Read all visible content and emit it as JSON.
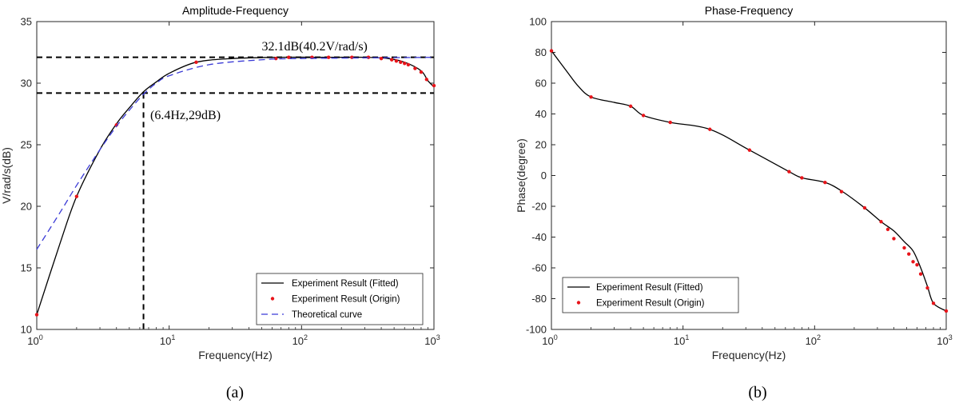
{
  "chart_data": [
    {
      "type": "line",
      "title": "Amplitude-Frequency",
      "xlabel": "Frequency(Hz)",
      "ylabel": "V/rad/s(dB)",
      "xscale": "log",
      "xlim": [
        1,
        1000
      ],
      "ylim": [
        10,
        35
      ],
      "xticks": [
        {
          "base": "10",
          "exp": "0"
        },
        {
          "base": "10",
          "exp": "1"
        },
        {
          "base": "10",
          "exp": "2"
        },
        {
          "base": "10",
          "exp": "3"
        }
      ],
      "yticks": [
        "10",
        "15",
        "20",
        "25",
        "30",
        "35"
      ],
      "grid": true,
      "legend_position": "bottom-right",
      "panel_label": "(a)",
      "series": [
        {
          "name": "Experiment Result (Fitted)",
          "style": "solid",
          "color": "#000000",
          "x": [
            1,
            1.5,
            2,
            3,
            4,
            5,
            6.4,
            8,
            10,
            16,
            30,
            70,
            150,
            300,
            450,
            600,
            800,
            900,
            1000
          ],
          "y": [
            11.2,
            17.0,
            20.8,
            24.6,
            26.7,
            28.0,
            29.3,
            30.1,
            30.8,
            31.7,
            32.0,
            32.1,
            32.1,
            32.1,
            32.0,
            31.7,
            31.0,
            30.2,
            29.7
          ]
        },
        {
          "name": "Experiment Result (Origin)",
          "style": "markers",
          "color": "#e8141a",
          "x": [
            1,
            2,
            4,
            16,
            64,
            80,
            120,
            160,
            240,
            320,
            400,
            480,
            520,
            560,
            600,
            640,
            720,
            800,
            880,
            1000
          ],
          "y": [
            11.2,
            20.8,
            26.6,
            31.7,
            32.0,
            32.1,
            32.1,
            32.1,
            32.1,
            32.1,
            32.0,
            31.9,
            31.8,
            31.7,
            31.6,
            31.5,
            31.2,
            30.9,
            30.3,
            29.8
          ]
        },
        {
          "name": "Theoretical curve",
          "style": "dashed",
          "color": "#3b3bd6",
          "x": [
            1,
            1.5,
            2,
            3,
            4,
            5,
            6.4,
            8,
            10,
            20,
            50,
            100,
            1000
          ],
          "y": [
            16.5,
            19.5,
            21.7,
            24.6,
            26.5,
            27.8,
            29.1,
            30.0,
            30.6,
            31.5,
            31.9,
            32.0,
            32.1
          ]
        }
      ],
      "reference_lines": [
        {
          "orientation": "h",
          "value": 32.1
        },
        {
          "orientation": "h",
          "value": 29.2
        },
        {
          "orientation": "v",
          "value": 6.4
        }
      ],
      "annotations": [
        {
          "text": "32.1dB(40.2V/rad/s)",
          "x": 50,
          "y": 32.4
        },
        {
          "text": "(6.4Hz,29dB)",
          "x": 7.2,
          "y": 28.0
        }
      ]
    },
    {
      "type": "line",
      "title": "Phase-Frequency",
      "xlabel": "Frequency(Hz)",
      "ylabel": "Phase(degree)",
      "xscale": "log",
      "xlim": [
        1,
        1000
      ],
      "ylim": [
        -100,
        100
      ],
      "xticks": [
        {
          "base": "10",
          "exp": "0"
        },
        {
          "base": "10",
          "exp": "1"
        },
        {
          "base": "10",
          "exp": "2"
        },
        {
          "base": "10",
          "exp": "3"
        }
      ],
      "yticks": [
        "-100",
        "-80",
        "-60",
        "-40",
        "-20",
        "0",
        "20",
        "40",
        "60",
        "80",
        "100"
      ],
      "grid": true,
      "legend_position": "bottom-left",
      "panel_label": "(b)",
      "series": [
        {
          "name": "Experiment Result (Fitted)",
          "style": "solid",
          "color": "#000000",
          "x": [
            1,
            1.3,
            1.6,
            2,
            3,
            4,
            5,
            8,
            16,
            32,
            64,
            80,
            120,
            160,
            240,
            320,
            400,
            480,
            560,
            640,
            720,
            800,
            1000
          ],
          "y": [
            81,
            68,
            58,
            51,
            47.5,
            45,
            39,
            34.5,
            30,
            16.5,
            2.5,
            -1.5,
            -4.5,
            -10,
            -21,
            -30,
            -36,
            -43,
            -49,
            -60,
            -72,
            -83,
            -88
          ]
        },
        {
          "name": "Experiment Result (Origin)",
          "style": "markers",
          "color": "#e8141a",
          "x": [
            1,
            2,
            4,
            5,
            8,
            16,
            32,
            64,
            80,
            120,
            160,
            240,
            320,
            360,
            400,
            480,
            520,
            560,
            600,
            640,
            720,
            800,
            1000
          ],
          "y": [
            81,
            51,
            45,
            39,
            34.5,
            30,
            16.5,
            2.5,
            -1.5,
            -4.5,
            -10.5,
            -21,
            -30,
            -35,
            -41,
            -47,
            -51,
            -56,
            -58,
            -64,
            -73,
            -83,
            -88
          ]
        }
      ]
    }
  ]
}
